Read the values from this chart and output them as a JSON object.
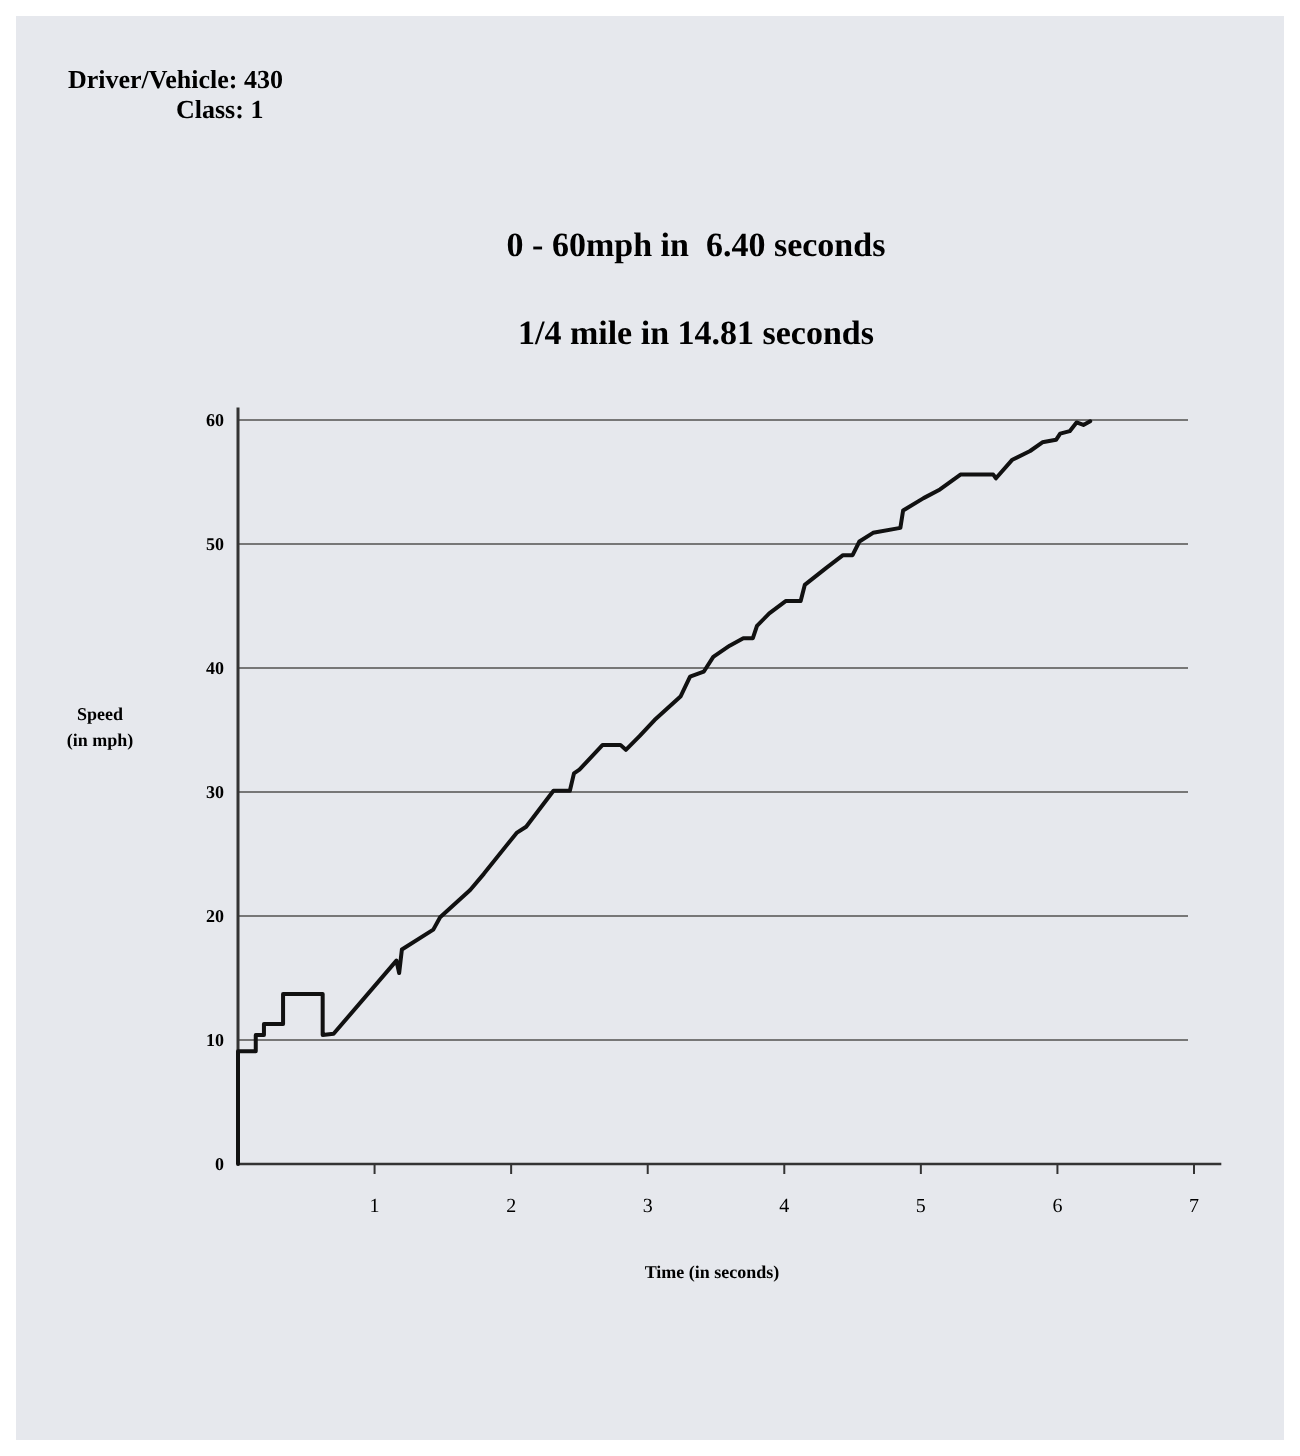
{
  "chart_data": {
    "type": "line",
    "title": "0 - 60mph in  6.40 seconds",
    "subtitle": "1/4 mile in 14.81 seconds",
    "xlabel": "Time (in seconds)",
    "ylabel": "Speed\n(in mph)",
    "annotations": [
      "Driver/Vehicle: 430",
      "Class: 1"
    ],
    "xlim": [
      0,
      7.2
    ],
    "ylim": [
      0,
      61
    ],
    "xticks": [
      1,
      2,
      3,
      4,
      5,
      6,
      7
    ],
    "yticks": [
      0,
      10,
      20,
      30,
      40,
      50,
      60
    ],
    "grid": "y",
    "marker": "none",
    "line_style": "solid",
    "series": [
      {
        "color": "#111111",
        "x": [
          0,
          0,
          0.13,
          0.13,
          0.19,
          0.19,
          0.33,
          0.33,
          0.62,
          0.62,
          0.7,
          1.16,
          1.18,
          1.2,
          1.43,
          1.48,
          1.7,
          1.8,
          2.04,
          2.11,
          2.31,
          2.43,
          2.46,
          2.5,
          2.67,
          2.8,
          2.84,
          2.94,
          3.05,
          3.24,
          3.31,
          3.41,
          3.48,
          3.6,
          3.7,
          3.77,
          3.8,
          3.89,
          4.01,
          4.12,
          4.15,
          4.31,
          4.43,
          4.5,
          4.55,
          4.65,
          4.85,
          4.87,
          5.02,
          5.14,
          5.29,
          5.53,
          5.55,
          5.67,
          5.8,
          5.89,
          5.99,
          6.02,
          6.09,
          6.14,
          6.19,
          6.24
        ],
        "values": [
          0,
          9.1,
          9.1,
          10.4,
          10.4,
          11.3,
          11.3,
          13.7,
          13.7,
          10.4,
          10.5,
          16.4,
          15.4,
          17.3,
          18.9,
          19.9,
          22.1,
          23.4,
          26.7,
          27.2,
          30.1,
          30.1,
          31.5,
          31.8,
          33.8,
          33.8,
          33.4,
          34.5,
          35.8,
          37.7,
          39.3,
          39.7,
          40.9,
          41.8,
          42.4,
          42.4,
          43.4,
          44.4,
          45.4,
          45.4,
          46.7,
          48.1,
          49.1,
          49.1,
          50.2,
          50.9,
          51.3,
          52.7,
          53.7,
          54.4,
          55.6,
          55.6,
          55.3,
          56.8,
          57.5,
          58.2,
          58.4,
          58.9,
          59.1,
          59.8,
          59.6,
          59.9
        ]
      }
    ]
  }
}
